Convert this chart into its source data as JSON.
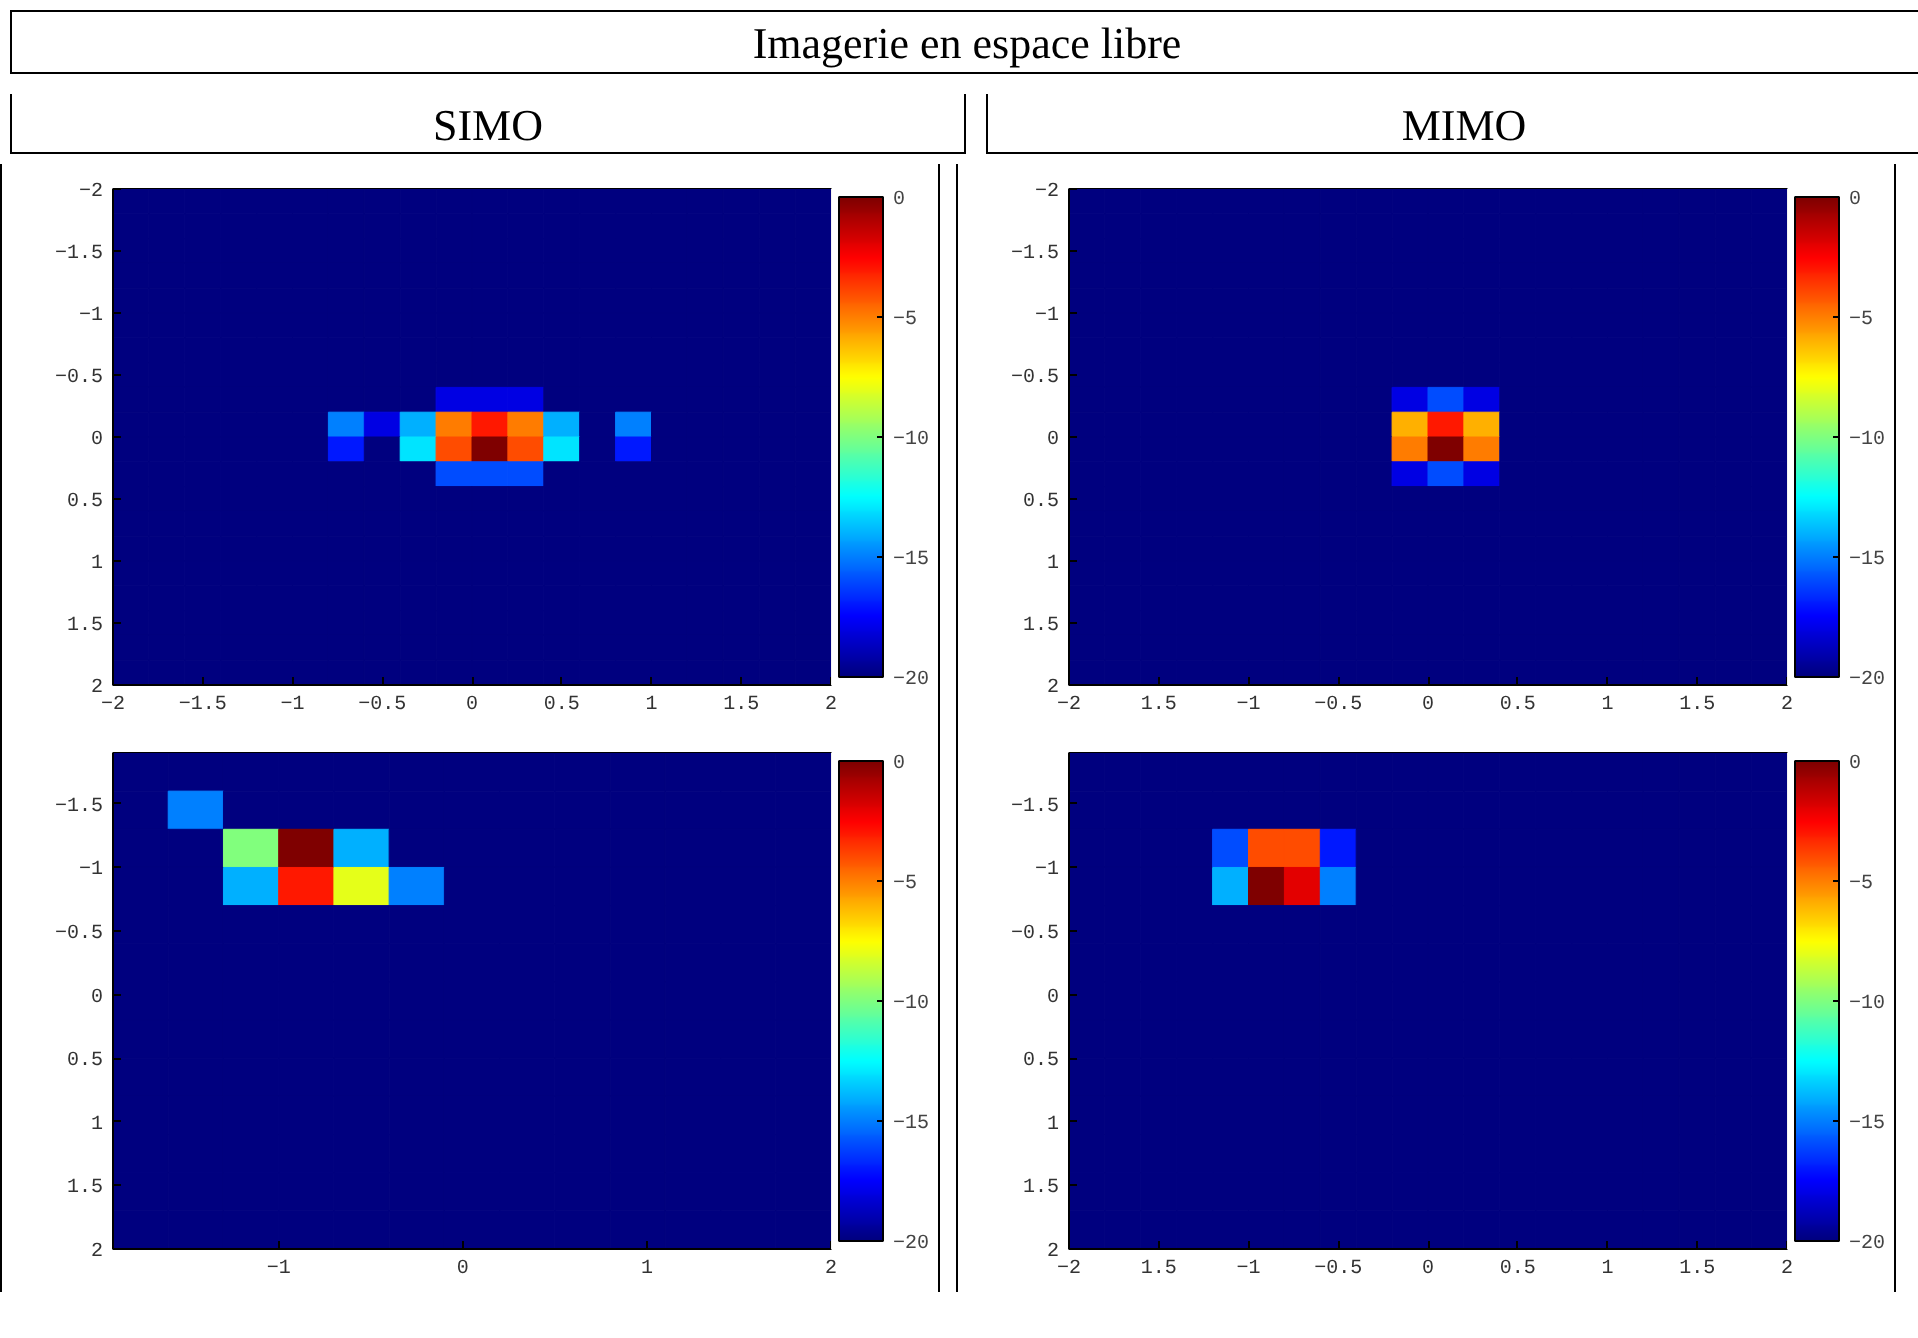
{
  "chart_data": [
    {
      "type": "heatmap",
      "title": "Imagerie en espace libre",
      "subtitle": "SIMO",
      "x": [
        -1.9,
        -1.7,
        -1.5,
        -1.3,
        -1.1,
        -0.9,
        -0.7,
        -0.5,
        -0.3,
        -0.1,
        0.1,
        0.3,
        0.5,
        0.7,
        0.9,
        1.1,
        1.3,
        1.5,
        1.7,
        1.9
      ],
      "y": [
        -1.9,
        -1.7,
        -1.5,
        -1.3,
        -1.1,
        -0.9,
        -0.7,
        -0.5,
        -0.3,
        -0.1,
        0.1,
        0.3,
        0.5,
        0.7,
        0.9,
        1.1,
        1.3,
        1.5,
        1.7,
        1.9
      ],
      "cells": [
        [
          -20,
          -20,
          -20,
          -20,
          -20,
          -20,
          -20,
          -20,
          -20,
          -20,
          -20,
          -20,
          -20,
          -20,
          -20,
          -20,
          -20,
          -20,
          -20,
          -20
        ],
        [
          -20,
          -20,
          -20,
          -20,
          -20,
          -20,
          -20,
          -20,
          -20,
          -20,
          -20,
          -20,
          -20,
          -20,
          -20,
          -20,
          -20,
          -20,
          -20,
          -20
        ],
        [
          -20,
          -20,
          -20,
          -20,
          -20,
          -20,
          -20,
          -20,
          -20,
          -20,
          -20,
          -20,
          -20,
          -20,
          -20,
          -20,
          -20,
          -20,
          -20,
          -20
        ],
        [
          -20,
          -20,
          -20,
          -20,
          -20,
          -20,
          -20,
          -20,
          -20,
          -20,
          -20,
          -20,
          -20,
          -20,
          -20,
          -20,
          -20,
          -20,
          -20,
          -20
        ],
        [
          -20,
          -20,
          -20,
          -20,
          -20,
          -20,
          -20,
          -20,
          -20,
          -20,
          -20,
          -20,
          -20,
          -20,
          -20,
          -20,
          -20,
          -20,
          -20,
          -20
        ],
        [
          -20,
          -20,
          -20,
          -20,
          -20,
          -20,
          -20,
          -20,
          -20,
          -20,
          -20,
          -20,
          -20,
          -20,
          -20,
          -20,
          -20,
          -20,
          -20,
          -20
        ],
        [
          -20,
          -20,
          -20,
          -20,
          -20,
          -20,
          -20,
          -20,
          -20,
          -20,
          -20,
          -20,
          -20,
          -20,
          -20,
          -20,
          -20,
          -20,
          -20,
          -20
        ],
        [
          -20,
          -20,
          -20,
          -20,
          -20,
          -20,
          -20,
          -20,
          -20,
          -20,
          -20,
          -20,
          -20,
          -20,
          -20,
          -20,
          -20,
          -20,
          -20,
          -20
        ],
        [
          -20,
          -20,
          -20,
          -20,
          -20,
          -20,
          -20,
          -20,
          -20,
          -18,
          -18,
          -18,
          -20,
          -20,
          -20,
          -20,
          -20,
          -20,
          -20,
          -20
        ],
        [
          -20,
          -20,
          -20,
          -20,
          -20,
          -20,
          -15,
          -18,
          -14,
          -5,
          -3,
          -5,
          -14,
          -20,
          -15,
          -20,
          -20,
          -20,
          -20,
          -20
        ],
        [
          -20,
          -20,
          -20,
          -20,
          -20,
          -20,
          -17,
          -20,
          -13,
          -4,
          0,
          -4,
          -13,
          -20,
          -17,
          -20,
          -20,
          -20,
          -20,
          -20
        ],
        [
          -20,
          -20,
          -20,
          -20,
          -20,
          -20,
          -20,
          -20,
          -20,
          -16,
          -16,
          -16,
          -20,
          -20,
          -20,
          -20,
          -20,
          -20,
          -20,
          -20
        ],
        [
          -20,
          -20,
          -20,
          -20,
          -20,
          -20,
          -20,
          -20,
          -20,
          -20,
          -20,
          -20,
          -20,
          -20,
          -20,
          -20,
          -20,
          -20,
          -20,
          -20
        ],
        [
          -20,
          -20,
          -20,
          -20,
          -20,
          -20,
          -20,
          -20,
          -20,
          -20,
          -20,
          -20,
          -20,
          -20,
          -20,
          -20,
          -20,
          -20,
          -20,
          -20
        ],
        [
          -20,
          -20,
          -20,
          -20,
          -20,
          -20,
          -20,
          -20,
          -20,
          -20,
          -20,
          -20,
          -20,
          -20,
          -20,
          -20,
          -20,
          -20,
          -20,
          -20
        ],
        [
          -20,
          -20,
          -20,
          -20,
          -20,
          -20,
          -20,
          -20,
          -20,
          -20,
          -20,
          -20,
          -20,
          -20,
          -20,
          -20,
          -20,
          -20,
          -20,
          -20
        ],
        [
          -20,
          -20,
          -20,
          -20,
          -20,
          -20,
          -20,
          -20,
          -20,
          -20,
          -20,
          -20,
          -20,
          -20,
          -20,
          -20,
          -20,
          -20,
          -20,
          -20
        ],
        [
          -20,
          -20,
          -20,
          -20,
          -20,
          -20,
          -20,
          -20,
          -20,
          -20,
          -20,
          -20,
          -20,
          -20,
          -20,
          -20,
          -20,
          -20,
          -20,
          -20
        ],
        [
          -20,
          -20,
          -20,
          -20,
          -20,
          -20,
          -20,
          -20,
          -20,
          -20,
          -20,
          -20,
          -20,
          -20,
          -20,
          -20,
          -20,
          -20,
          -20,
          -20
        ],
        [
          -20,
          -20,
          -20,
          -20,
          -20,
          -20,
          -20,
          -20,
          -20,
          -20,
          -20,
          -20,
          -20,
          -20,
          -20,
          -20,
          -20,
          -20,
          -20,
          -20
        ]
      ],
      "xlim": [
        -2,
        2
      ],
      "ylim": [
        2,
        -2
      ],
      "xticks": [
        -2,
        -1.5,
        -1,
        -0.5,
        0,
        0.5,
        1,
        1.5,
        2
      ],
      "yticks": [
        -2,
        -1.5,
        -1,
        -0.5,
        0,
        0.5,
        1,
        1.5,
        2
      ],
      "clim": [
        -20,
        0
      ],
      "cticks": [
        -20,
        -15,
        -10,
        -5,
        0
      ]
    },
    {
      "type": "heatmap",
      "subtitle": "MIMO",
      "x": [
        -1.9,
        -1.7,
        -1.5,
        -1.3,
        -1.1,
        -0.9,
        -0.7,
        -0.5,
        -0.3,
        -0.1,
        0.1,
        0.3,
        0.5,
        0.7,
        0.9,
        1.1,
        1.3,
        1.5,
        1.7,
        1.9
      ],
      "y": [
        -1.9,
        -1.7,
        -1.5,
        -1.3,
        -1.1,
        -0.9,
        -0.7,
        -0.5,
        -0.3,
        -0.1,
        0.1,
        0.3,
        0.5,
        0.7,
        0.9,
        1.1,
        1.3,
        1.5,
        1.7,
        1.9
      ],
      "cells": [
        [
          -20,
          -20,
          -20,
          -20,
          -20,
          -20,
          -20,
          -20,
          -20,
          -20,
          -20,
          -20,
          -20,
          -20,
          -20,
          -20,
          -20,
          -20,
          -20,
          -20
        ],
        [
          -20,
          -20,
          -20,
          -20,
          -20,
          -20,
          -20,
          -20,
          -20,
          -20,
          -20,
          -20,
          -20,
          -20,
          -20,
          -20,
          -20,
          -20,
          -20,
          -20
        ],
        [
          -20,
          -20,
          -20,
          -20,
          -20,
          -20,
          -20,
          -20,
          -20,
          -20,
          -20,
          -20,
          -20,
          -20,
          -20,
          -20,
          -20,
          -20,
          -20,
          -20
        ],
        [
          -20,
          -20,
          -20,
          -20,
          -20,
          -20,
          -20,
          -20,
          -20,
          -20,
          -20,
          -20,
          -20,
          -20,
          -20,
          -20,
          -20,
          -20,
          -20,
          -20
        ],
        [
          -20,
          -20,
          -20,
          -20,
          -20,
          -20,
          -20,
          -20,
          -20,
          -20,
          -20,
          -20,
          -20,
          -20,
          -20,
          -20,
          -20,
          -20,
          -20,
          -20
        ],
        [
          -20,
          -20,
          -20,
          -20,
          -20,
          -20,
          -20,
          -20,
          -20,
          -20,
          -20,
          -20,
          -20,
          -20,
          -20,
          -20,
          -20,
          -20,
          -20,
          -20
        ],
        [
          -20,
          -20,
          -20,
          -20,
          -20,
          -20,
          -20,
          -20,
          -20,
          -20,
          -20,
          -20,
          -20,
          -20,
          -20,
          -20,
          -20,
          -20,
          -20,
          -20
        ],
        [
          -20,
          -20,
          -20,
          -20,
          -20,
          -20,
          -20,
          -20,
          -20,
          -20,
          -20,
          -20,
          -20,
          -20,
          -20,
          -20,
          -20,
          -20,
          -20,
          -20
        ],
        [
          -20,
          -20,
          -20,
          -20,
          -20,
          -20,
          -20,
          -20,
          -20,
          -18,
          -16,
          -18,
          -20,
          -20,
          -20,
          -20,
          -20,
          -20,
          -20,
          -20
        ],
        [
          -20,
          -20,
          -20,
          -20,
          -20,
          -20,
          -20,
          -20,
          -20,
          -6,
          -3,
          -6,
          -20,
          -20,
          -20,
          -20,
          -20,
          -20,
          -20,
          -20
        ],
        [
          -20,
          -20,
          -20,
          -20,
          -20,
          -20,
          -20,
          -20,
          -20,
          -5,
          0,
          -5,
          -20,
          -20,
          -20,
          -20,
          -20,
          -20,
          -20,
          -20
        ],
        [
          -20,
          -20,
          -20,
          -20,
          -20,
          -20,
          -20,
          -20,
          -20,
          -18,
          -16,
          -18,
          -20,
          -20,
          -20,
          -20,
          -20,
          -20,
          -20,
          -20
        ],
        [
          -20,
          -20,
          -20,
          -20,
          -20,
          -20,
          -20,
          -20,
          -20,
          -20,
          -20,
          -20,
          -20,
          -20,
          -20,
          -20,
          -20,
          -20,
          -20,
          -20
        ],
        [
          -20,
          -20,
          -20,
          -20,
          -20,
          -20,
          -20,
          -20,
          -20,
          -20,
          -20,
          -20,
          -20,
          -20,
          -20,
          -20,
          -20,
          -20,
          -20,
          -20
        ],
        [
          -20,
          -20,
          -20,
          -20,
          -20,
          -20,
          -20,
          -20,
          -20,
          -20,
          -20,
          -20,
          -20,
          -20,
          -20,
          -20,
          -20,
          -20,
          -20,
          -20
        ],
        [
          -20,
          -20,
          -20,
          -20,
          -20,
          -20,
          -20,
          -20,
          -20,
          -20,
          -20,
          -20,
          -20,
          -20,
          -20,
          -20,
          -20,
          -20,
          -20,
          -20
        ],
        [
          -20,
          -20,
          -20,
          -20,
          -20,
          -20,
          -20,
          -20,
          -20,
          -20,
          -20,
          -20,
          -20,
          -20,
          -20,
          -20,
          -20,
          -20,
          -20,
          -20
        ],
        [
          -20,
          -20,
          -20,
          -20,
          -20,
          -20,
          -20,
          -20,
          -20,
          -20,
          -20,
          -20,
          -20,
          -20,
          -20,
          -20,
          -20,
          -20,
          -20,
          -20
        ],
        [
          -20,
          -20,
          -20,
          -20,
          -20,
          -20,
          -20,
          -20,
          -20,
          -20,
          -20,
          -20,
          -20,
          -20,
          -20,
          -20,
          -20,
          -20,
          -20,
          -20
        ],
        [
          -20,
          -20,
          -20,
          -20,
          -20,
          -20,
          -20,
          -20,
          -20,
          -20,
          -20,
          -20,
          -20,
          -20,
          -20,
          -20,
          -20,
          -20,
          -20,
          -20
        ]
      ],
      "xlim": [
        -2,
        2
      ],
      "ylim": [
        2,
        -2
      ],
      "xticks": [
        -2,
        {
          "value": -1.5,
          "label": "1.5"
        },
        -1,
        -0.5,
        0,
        0.5,
        1,
        1.5,
        2
      ],
      "yticks": [
        -2,
        -1.5,
        -1,
        -0.5,
        0,
        0.5,
        1,
        1.5,
        2
      ],
      "clim": [
        -20,
        0
      ],
      "cticks": [
        -20,
        -15,
        -10,
        -5,
        0
      ]
    },
    {
      "type": "heatmap",
      "x": [
        -1.75,
        -1.45,
        -1.15,
        -0.85,
        -0.55,
        -0.25,
        0.05,
        0.35,
        0.65,
        0.95,
        1.25,
        1.55,
        1.85
      ],
      "y": [
        -1.75,
        -1.45,
        -1.15,
        -0.85,
        -0.55,
        -0.25,
        0.05,
        0.35,
        0.65,
        0.95,
        1.25,
        1.55,
        1.85
      ],
      "cells": [
        [
          -20,
          -20,
          -20,
          -20,
          -20,
          -20,
          -20,
          -20,
          -20,
          -20,
          -20,
          -20,
          -20
        ],
        [
          -20,
          -15,
          -20,
          -20,
          -20,
          -20,
          -20,
          -20,
          -20,
          -20,
          -20,
          -20,
          -20
        ],
        [
          -20,
          -20,
          -10,
          0,
          -14,
          -20,
          -20,
          -20,
          -20,
          -20,
          -20,
          -20,
          -20
        ],
        [
          -20,
          -20,
          -14,
          -3,
          -8,
          -15,
          -20,
          -20,
          -20,
          -20,
          -20,
          -20,
          -20
        ],
        [
          -20,
          -20,
          -20,
          -20,
          -20,
          -20,
          -20,
          -20,
          -20,
          -20,
          -20,
          -20,
          -20
        ],
        [
          -20,
          -20,
          -20,
          -20,
          -20,
          -20,
          -20,
          -20,
          -20,
          -20,
          -20,
          -20,
          -20
        ],
        [
          -20,
          -20,
          -20,
          -20,
          -20,
          -20,
          -20,
          -20,
          -20,
          -20,
          -20,
          -20,
          -20
        ],
        [
          -20,
          -20,
          -20,
          -20,
          -20,
          -20,
          -20,
          -20,
          -20,
          -20,
          -20,
          -20,
          -20
        ],
        [
          -20,
          -20,
          -20,
          -20,
          -20,
          -20,
          -20,
          -20,
          -20,
          -20,
          -20,
          -20,
          -20
        ],
        [
          -20,
          -20,
          -20,
          -20,
          -20,
          -20,
          -20,
          -20,
          -20,
          -20,
          -20,
          -20,
          -20
        ],
        [
          -20,
          -20,
          -20,
          -20,
          -20,
          -20,
          -20,
          -20,
          -20,
          -20,
          -20,
          -20,
          -20
        ],
        [
          -20,
          -20,
          -20,
          -20,
          -20,
          -20,
          -20,
          -20,
          -20,
          -20,
          -20,
          -20,
          -20
        ],
        [
          -20,
          -20,
          -20,
          -20,
          -20,
          -20,
          -20,
          -20,
          -20,
          -20,
          -20,
          -20,
          -20
        ]
      ],
      "xlim": [
        -1.9,
        2
      ],
      "ylim": [
        2,
        -1.9
      ],
      "xticks": [
        -1,
        0,
        1,
        2
      ],
      "yticks": [
        -1.5,
        -1,
        -0.5,
        0,
        0.5,
        1,
        1.5,
        2
      ],
      "clim": [
        -20,
        0
      ],
      "cticks": [
        -20,
        -15,
        -10,
        -5,
        0
      ]
    },
    {
      "type": "heatmap",
      "x": [
        -1.9,
        -1.7,
        -1.5,
        -1.3,
        -1.1,
        -0.9,
        -0.7,
        -0.5,
        -0.3,
        -0.1,
        0.1,
        0.3,
        0.5,
        0.7,
        0.9,
        1.1,
        1.3,
        1.5,
        1.7,
        1.9
      ],
      "y": [
        -1.75,
        -1.45,
        -1.15,
        -0.85,
        -0.55,
        -0.25,
        0.05,
        0.35,
        0.65,
        0.95,
        1.25,
        1.55,
        1.85
      ],
      "cells": [
        [
          -20,
          -20,
          -20,
          -20,
          -20,
          -20,
          -20,
          -20,
          -20,
          -20,
          -20,
          -20,
          -20,
          -20,
          -20,
          -20,
          -20,
          -20,
          -20,
          -20
        ],
        [
          -20,
          -20,
          -20,
          -20,
          -20,
          -20,
          -20,
          -20,
          -20,
          -20,
          -20,
          -20,
          -20,
          -20,
          -20,
          -20,
          -20,
          -20,
          -20,
          -20
        ],
        [
          -20,
          -20,
          -20,
          -20,
          -16,
          -4,
          -4,
          -17,
          -20,
          -20,
          -20,
          -20,
          -20,
          -20,
          -20,
          -20,
          -20,
          -20,
          -20,
          -20
        ],
        [
          -20,
          -20,
          -20,
          -20,
          -14,
          0,
          -2,
          -15,
          -20,
          -20,
          -20,
          -20,
          -20,
          -20,
          -20,
          -20,
          -20,
          -20,
          -20,
          -20
        ],
        [
          -20,
          -20,
          -20,
          -20,
          -20,
          -20,
          -20,
          -20,
          -20,
          -20,
          -20,
          -20,
          -20,
          -20,
          -20,
          -20,
          -20,
          -20,
          -20,
          -20
        ],
        [
          -20,
          -20,
          -20,
          -20,
          -20,
          -20,
          -20,
          -20,
          -20,
          -20,
          -20,
          -20,
          -20,
          -20,
          -20,
          -20,
          -20,
          -20,
          -20,
          -20
        ],
        [
          -20,
          -20,
          -20,
          -20,
          -20,
          -20,
          -20,
          -20,
          -20,
          -20,
          -20,
          -20,
          -20,
          -20,
          -20,
          -20,
          -20,
          -20,
          -20,
          -20
        ],
        [
          -20,
          -20,
          -20,
          -20,
          -20,
          -20,
          -20,
          -20,
          -20,
          -20,
          -20,
          -20,
          -20,
          -20,
          -20,
          -20,
          -20,
          -20,
          -20,
          -20
        ],
        [
          -20,
          -20,
          -20,
          -20,
          -20,
          -20,
          -20,
          -20,
          -20,
          -20,
          -20,
          -20,
          -20,
          -20,
          -20,
          -20,
          -20,
          -20,
          -20,
          -20
        ],
        [
          -20,
          -20,
          -20,
          -20,
          -20,
          -20,
          -20,
          -20,
          -20,
          -20,
          -20,
          -20,
          -20,
          -20,
          -20,
          -20,
          -20,
          -20,
          -20,
          -20
        ],
        [
          -20,
          -20,
          -20,
          -20,
          -20,
          -20,
          -20,
          -20,
          -20,
          -20,
          -20,
          -20,
          -20,
          -20,
          -20,
          -20,
          -20,
          -20,
          -20,
          -20
        ],
        [
          -20,
          -20,
          -20,
          -20,
          -20,
          -20,
          -20,
          -20,
          -20,
          -20,
          -20,
          -20,
          -20,
          -20,
          -20,
          -20,
          -20,
          -20,
          -20,
          -20
        ],
        [
          -20,
          -20,
          -20,
          -20,
          -20,
          -20,
          -20,
          -20,
          -20,
          -20,
          -20,
          -20,
          -20,
          -20,
          -20,
          -20,
          -20,
          -20,
          -20,
          -20
        ]
      ],
      "xlim": [
        -2,
        2
      ],
      "ylim": [
        2,
        -1.9
      ],
      "xticks": [
        -2,
        {
          "value": -1.5,
          "label": "1.5"
        },
        -1,
        -0.5,
        0,
        0.5,
        1,
        1.5,
        2
      ],
      "yticks": [
        -1.5,
        -1,
        -0.5,
        0,
        0.5,
        1,
        1.5,
        2
      ],
      "clim": [
        -20,
        0
      ],
      "cticks": [
        -20,
        -15,
        -10,
        -5,
        0
      ]
    }
  ]
}
